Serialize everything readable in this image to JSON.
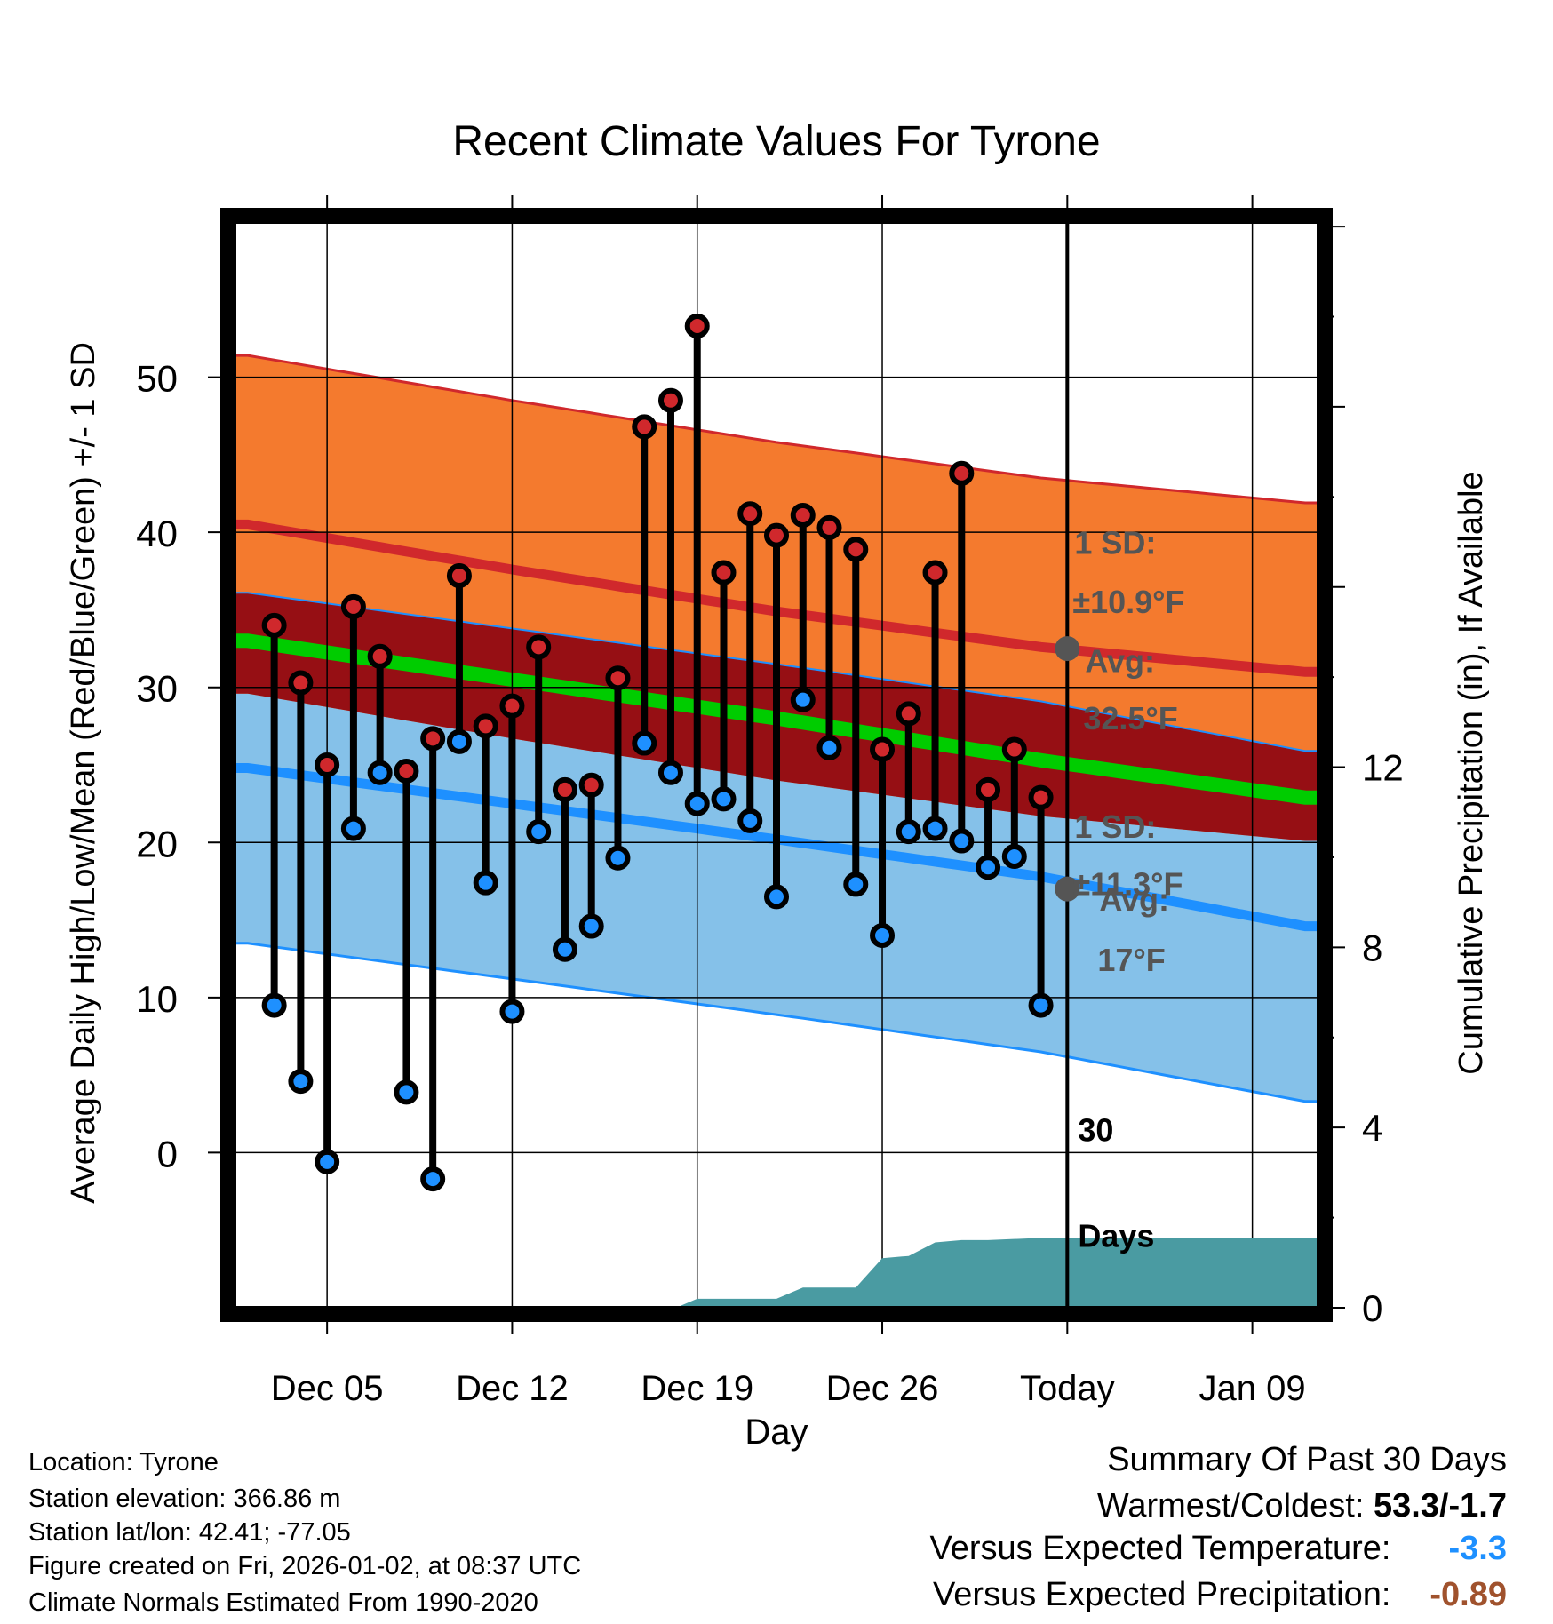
{
  "chart_data": {
    "type": "line",
    "title": "Recent Climate Values For Tyrone",
    "xlabel": "Day",
    "ylabel": "Average Daily High/Low/Mean (Red/Blue/Green) +/- 1 SD",
    "y2label": "Cumulative Precipitation (in), If Available",
    "ylim": [
      -10,
      60
    ],
    "yticks": [
      0,
      10,
      20,
      30,
      40,
      50
    ],
    "y2lim": [
      0,
      24.1
    ],
    "y2ticks": [
      0,
      4,
      8,
      12
    ],
    "xlim": [
      -0.5,
      40.5
    ],
    "xtick_positions": [
      3,
      10,
      17,
      24,
      31,
      38
    ],
    "xtick_labels": [
      "Dec 05",
      "Dec 12",
      "Dec 19",
      "Dec 26",
      "Today",
      "Jan 09"
    ],
    "today_index": 31,
    "grid": true,
    "days": [
      1,
      2,
      3,
      4,
      5,
      6,
      7,
      8,
      9,
      10,
      11,
      12,
      13,
      14,
      15,
      16,
      17,
      18,
      19,
      20,
      21,
      22,
      23,
      24,
      25,
      26,
      27,
      28,
      29,
      30
    ],
    "series": [
      {
        "name": "Observed High",
        "color": "#d0282c",
        "values": [
          34.0,
          30.3,
          25.0,
          35.2,
          32.0,
          24.6,
          26.7,
          37.2,
          27.5,
          28.8,
          32.6,
          23.4,
          23.7,
          30.6,
          46.8,
          48.5,
          53.3,
          37.4,
          41.2,
          39.8,
          41.1,
          40.3,
          38.9,
          26.0,
          28.3,
          37.4,
          43.8,
          23.4,
          26.0,
          22.9
        ]
      },
      {
        "name": "Observed Low",
        "color": "#1e90ff",
        "values": [
          9.5,
          4.6,
          -0.6,
          20.9,
          24.5,
          3.9,
          -1.7,
          26.5,
          17.4,
          9.1,
          20.7,
          13.1,
          14.6,
          19.0,
          26.4,
          24.5,
          22.5,
          22.8,
          21.4,
          16.5,
          29.2,
          26.1,
          17.3,
          14.0,
          20.7,
          20.9,
          20.1,
          18.4,
          19.1,
          9.5
        ]
      },
      {
        "name": "Normal High",
        "color": "#d0282c",
        "x": [
          0,
          10,
          20,
          30,
          40
        ],
        "values": [
          40.5,
          37.6,
          34.9,
          32.6,
          31.0
        ],
        "sd": 10.9
      },
      {
        "name": "Normal Low",
        "color": "#1e90ff",
        "x": [
          0,
          10,
          20,
          30,
          40
        ],
        "values": [
          24.8,
          22.5,
          20.2,
          17.8,
          14.6
        ],
        "sd": 11.3
      },
      {
        "name": "Normal Mean",
        "color": "#00cc00",
        "x": [
          0,
          10,
          20,
          30,
          40
        ],
        "values": [
          33.0,
          30.5,
          28.0,
          25.3,
          22.9
        ]
      },
      {
        "name": "Cumulative Precipitation (in)",
        "color": "#4a9ba2",
        "x": [
          16.2,
          17,
          20,
          21,
          23,
          24,
          25,
          26,
          27,
          28,
          30,
          40.5
        ],
        "values": [
          0,
          0.2,
          0.2,
          0.45,
          0.45,
          1.1,
          1.15,
          1.45,
          1.5,
          1.5,
          1.55,
          1.55
        ]
      }
    ],
    "annotations": {
      "high_sd": "1 SD:",
      "high_sd_value": "±10.9°F",
      "high_avg": "Avg:",
      "high_avg_value": "32.5°F",
      "high_avg_y": 32.5,
      "low_sd": "1 SD:",
      "low_sd_value": "±11.3°F",
      "low_avg": "Avg:",
      "low_avg_value": "17°F",
      "low_avg_y": 17,
      "days_count": "30",
      "days_word": "Days"
    }
  },
  "info": {
    "location": "Location: Tyrone",
    "elevation": "Station elevation: 366.86 m",
    "latlon": "Station lat/lon: 42.41; -77.05",
    "created": "Figure created on Fri, 2026-01-02, at 08:37 UTC",
    "normals": "Climate Normals Estimated From 1990-2020"
  },
  "summary": {
    "title": "Summary Of Past 30 Days",
    "warm_cold_label": "Warmest/Coldest:",
    "warm_cold_value": "53.3/-1.7",
    "temp_label": "Versus Expected Temperature:",
    "temp_value": "-3.3",
    "temp_color": "#1e90ff",
    "precip_label": "Versus Expected Precipitation:",
    "precip_value": "-0.89",
    "precip_color": "#a0522d"
  }
}
